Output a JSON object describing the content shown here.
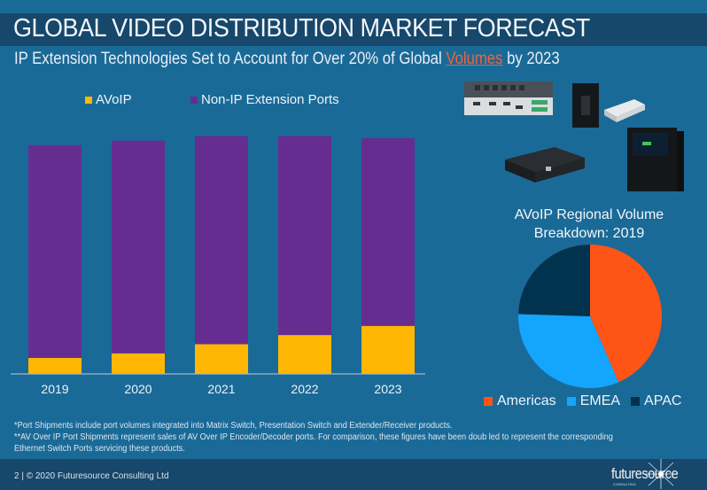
{
  "header": {
    "title": "GLOBAL VIDEO DISTRIBUTION MARKET FORECAST",
    "subtitle_before": "IP Extension Technologies Set to Account for Over 20% of Global ",
    "subtitle_highlight": "Volumes",
    "subtitle_after": " by 2023"
  },
  "colors": {
    "background": "#1a6a98",
    "band": "#17476a",
    "avoip": "#ffb703",
    "non_ip": "#662d91",
    "americas": "#fe5415",
    "emea": "#14a5ff",
    "apac": "#02334e",
    "highlight": "#f0643a"
  },
  "chart_data": [
    {
      "type": "bar",
      "stacked": true,
      "title": "",
      "xlabel": "",
      "ylabel": "",
      "y_axis_labels_shown": false,
      "units": "relative index (unlabeled axis; heights read proportionally, 2019 total = 100)",
      "categories": [
        "2019",
        "2020",
        "2021",
        "2022",
        "2023"
      ],
      "series": [
        {
          "name": "AVoIP",
          "color": "#ffb703",
          "values": [
            7,
            9,
            13,
            17,
            21
          ]
        },
        {
          "name": "Non-IP Extension Ports",
          "color": "#662d91",
          "values": [
            93,
            93,
            91,
            87,
            82
          ]
        }
      ],
      "ylim": [
        0,
        110
      ],
      "grid": false,
      "legend_position": "top"
    },
    {
      "type": "pie",
      "title": "AVoIP Regional Volume Breakdown: 2019",
      "title_lines": [
        "AVoIP Regional Volume",
        "Breakdown: 2019"
      ],
      "categories": [
        "Americas",
        "EMEA",
        "APAC"
      ],
      "values": [
        43.5,
        32,
        24.5
      ],
      "units": "percent (estimated from slice angles)",
      "colors": [
        "#fe5415",
        "#14a5ff",
        "#02334e"
      ],
      "start": "12 o'clock, clockwise",
      "legend_position": "bottom"
    }
  ],
  "products_image": {
    "description": "AV distribution hardware product photos",
    "items": [
      "presentation-switcher",
      "wall-plate-extender",
      "ip-encoder-box",
      "hdmi-extender",
      "matrix-switch-chassis"
    ]
  },
  "footnotes": [
    "*Port Shipments include port volumes integrated into Matrix Switch, Presentation Switch and Extender/Receiver products.",
    "**AV Over IP Port Shipments represent sales of AV Over IP Encoder/Decoder ports. For comparison, these figures have been doub led to represent the corresponding Ethernet Switch Ports servicing these products."
  ],
  "footer": {
    "text": "2  |  © 2020 Futuresource  Consulting  Ltd",
    "logo_word": "futuresource",
    "logo_sub": "CONSULTING"
  }
}
